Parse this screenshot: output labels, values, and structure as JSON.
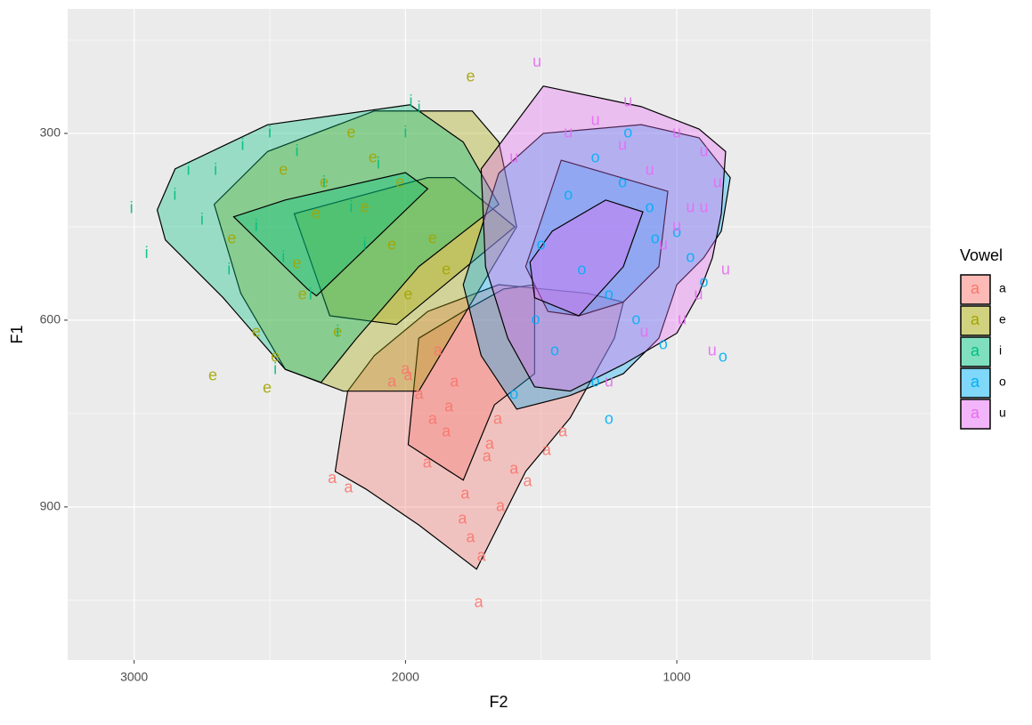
{
  "chart_data": {
    "type": "scatter",
    "x_label": "F2",
    "y_label": "F1",
    "xlim": [
      3245,
      65
    ],
    "ylim": [
      100,
      1146
    ],
    "y_reversed": true,
    "xticks": [
      3000,
      2000,
      1000
    ],
    "yticks": [
      300,
      600,
      900
    ],
    "minor_xticks": [
      2500,
      1500,
      500
    ],
    "minor_yticks": [
      150,
      450,
      750,
      1050
    ],
    "grid": true,
    "legend_title": "Vowel",
    "legend_position": "right",
    "legend_key_label": "a",
    "series": [
      {
        "name": "a",
        "color": "#F8766D",
        "x": [
          1730,
          1780,
          1850,
          1900,
          1700,
          1650,
          1820,
          1760,
          1950,
          2000,
          1600,
          1550,
          1880,
          1720,
          1840,
          1690,
          2270,
          2210,
          1480,
          1420,
          1920,
          1790,
          1660,
          1990,
          2050
        ],
        "y": [
          1054,
          880,
          780,
          760,
          820,
          900,
          700,
          950,
          720,
          680,
          840,
          860,
          650,
          980,
          740,
          800,
          855,
          870,
          810,
          780,
          830,
          920,
          760,
          690,
          700
        ],
        "hulls": [
          {
            "x": [
              2259,
              2213,
              2115,
              1918,
              1656,
              1328,
              1197,
              1230,
              1393,
              1557,
              1738,
              1951,
              2147
            ],
            "y": [
              843,
              714,
              657,
              586,
              543,
              557,
              571,
              629,
              757,
              843,
              1000,
              929,
              871
            ]
          },
          {
            "x": [
              1951,
              1787,
              1639,
              1524,
              1524,
              1672,
              1787,
              1990
            ],
            "y": [
              629,
              586,
              550,
              543,
              686,
              736,
              857,
              800
            ]
          }
        ]
      },
      {
        "name": "e",
        "color": "#A3A500",
        "x": [
          2150,
          2050,
          2300,
          2400,
          1990,
          1760,
          2250,
          2120,
          2550,
          2480,
          2380,
          1900,
          2200,
          2510,
          2710,
          2640,
          2020,
          2330,
          1850,
          2450
        ],
        "y": [
          420,
          480,
          380,
          510,
          560,
          210,
          620,
          340,
          620,
          660,
          560,
          470,
          300,
          710,
          690,
          470,
          380,
          430,
          520,
          360
        ],
        "hulls": [
          {
            "x": [
              2705,
              2508,
              2115,
              1754,
              1656,
              1590,
              1951,
              2229,
              2443,
              2607
            ],
            "y": [
              414,
              329,
              264,
              264,
              314,
              450,
              714,
              714,
              679,
              557
            ]
          },
          {
            "x": [
              2410,
              1918,
              1820,
              1597,
              2033,
              2279
            ],
            "y": [
              429,
              371,
              371,
              450,
              607,
              593
            ]
          }
        ]
      },
      {
        "name": "i",
        "color": "#00BF7D",
        "x": [
          3010,
          2954,
          2850,
          2700,
          2600,
          2500,
          2400,
          2300,
          2200,
          2100,
          2000,
          2550,
          2450,
          2350,
          2750,
          2650,
          2250,
          1950,
          2800,
          2150,
          2480,
          1980
        ],
        "y": [
          421,
          493,
          400,
          360,
          320,
          300,
          330,
          380,
          420,
          350,
          300,
          450,
          500,
          560,
          440,
          520,
          620,
          260,
          360,
          480,
          680,
          250
        ],
        "hulls": [
          {
            "x": [
              2915,
              2849,
              2508,
              1983,
              1787,
              1656,
              1951,
              2180,
              2311,
              2443,
              2672,
              2885
            ],
            "y": [
              423,
              357,
              286,
              254,
              314,
              414,
              514,
              629,
              700,
              679,
              564,
              471
            ]
          },
          {
            "x": [
              2633,
              2443,
              2000,
              1918,
              2328,
              2361
            ],
            "y": [
              434,
              407,
              363,
              389,
              561,
              550
            ]
          }
        ]
      },
      {
        "name": "o",
        "color": "#00B0F6",
        "x": [
          1300,
          1200,
          1100,
          1000,
          1400,
          1500,
          1350,
          1250,
          1150,
          1050,
          950,
          900,
          1300,
          1600,
          1450,
          1180,
          1250,
          1080,
          830,
          1520
        ],
        "y": [
          340,
          380,
          420,
          460,
          400,
          480,
          520,
          560,
          600,
          640,
          500,
          540,
          700,
          720,
          650,
          300,
          760,
          470,
          660,
          600
        ],
        "hulls": [
          {
            "x": [
              1656,
              1492,
              1131,
              918,
              803,
              836,
              901,
              1000,
              1066,
              1197,
              1393,
              1590,
              1721,
              1787
            ],
            "y": [
              364,
              300,
              286,
              307,
              371,
              457,
              500,
              543,
              629,
              686,
              721,
              743,
              657,
              543
            ]
          },
          {
            "x": [
              1557,
              1426,
              1033,
              1066,
              1197,
              1361,
              1475
            ],
            "y": [
              514,
              343,
              393,
              514,
              571,
              593,
              586
            ]
          }
        ]
      },
      {
        "name": "u",
        "color": "#E76BF3",
        "x": [
          1515,
          1180,
          1000,
          900,
          850,
          950,
          1100,
          1200,
          1300,
          1400,
          1050,
          920,
          980,
          870,
          820,
          1120,
          1250,
          1000,
          900,
          1600
        ],
        "y": [
          186,
          250,
          300,
          330,
          380,
          420,
          360,
          320,
          280,
          300,
          480,
          560,
          600,
          650,
          520,
          620,
          700,
          450,
          420,
          340
        ],
        "hulls": [
          {
            "x": [
              1721,
              1492,
              1131,
              918,
              820,
              836,
              869,
              918,
              1000,
              1197,
              1393,
              1524,
              1623,
              1705
            ],
            "y": [
              357,
              224,
              257,
              293,
              329,
              429,
              500,
              557,
              621,
              671,
              714,
              707,
              629,
              514
            ]
          },
          {
            "x": [
              1541,
              1459,
              1262,
              1125,
              1197,
              1361,
              1524
            ],
            "y": [
              507,
              457,
              407,
              426,
              514,
              593,
              564
            ]
          }
        ]
      }
    ]
  }
}
